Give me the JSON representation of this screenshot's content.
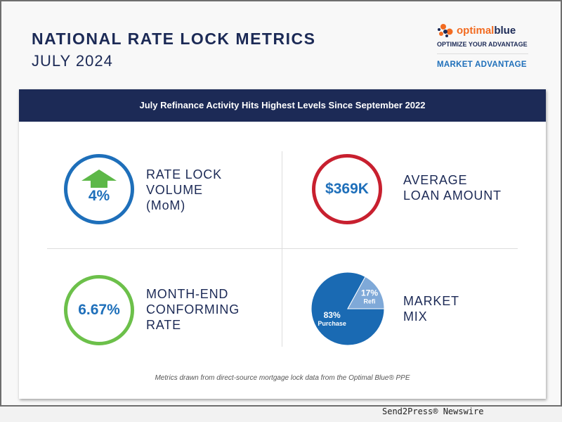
{
  "header": {
    "title": "NATIONAL RATE LOCK METRICS",
    "subtitle": "JULY 2024"
  },
  "logo": {
    "brand_a": "optimal",
    "brand_b": "blue",
    "tagline": "OPTIMIZE YOUR ADVANTAGE",
    "section": "MARKET ADVANTAGE",
    "colors": {
      "orange": "#f26b21",
      "navy": "#1c2a56"
    }
  },
  "banner": "July Refinance Activity Hits Highest Levels Since September 2022",
  "metrics": {
    "rate_lock": {
      "value": "4%",
      "label_lines": [
        "RATE LOCK",
        "VOLUME",
        "(MoM)"
      ],
      "trend": "up",
      "color": "#1e6fba"
    },
    "loan_amount": {
      "value": "$369K",
      "label_lines": [
        "AVERAGE",
        "LOAN AMOUNT"
      ],
      "color": "#c8202f"
    },
    "conforming_rate": {
      "value": "6.67%",
      "label_lines": [
        "MONTH-END",
        "CONFORMING",
        "RATE"
      ],
      "color": "#6cc04a"
    },
    "market_mix": {
      "label_lines": [
        "MARKET",
        "MIX"
      ]
    }
  },
  "chart_data": {
    "type": "pie",
    "title": "MARKET MIX",
    "slices": [
      {
        "name": "Purchase",
        "value": 83,
        "label": "83%",
        "color": "#1a6ab3"
      },
      {
        "name": "Refi",
        "value": 17,
        "label": "17%",
        "color": "#7fa9d8"
      }
    ]
  },
  "footnote": "Metrics drawn from direct-source mortgage lock data from the Optimal Blue® PPE",
  "credit": "Send2Press® Newswire"
}
